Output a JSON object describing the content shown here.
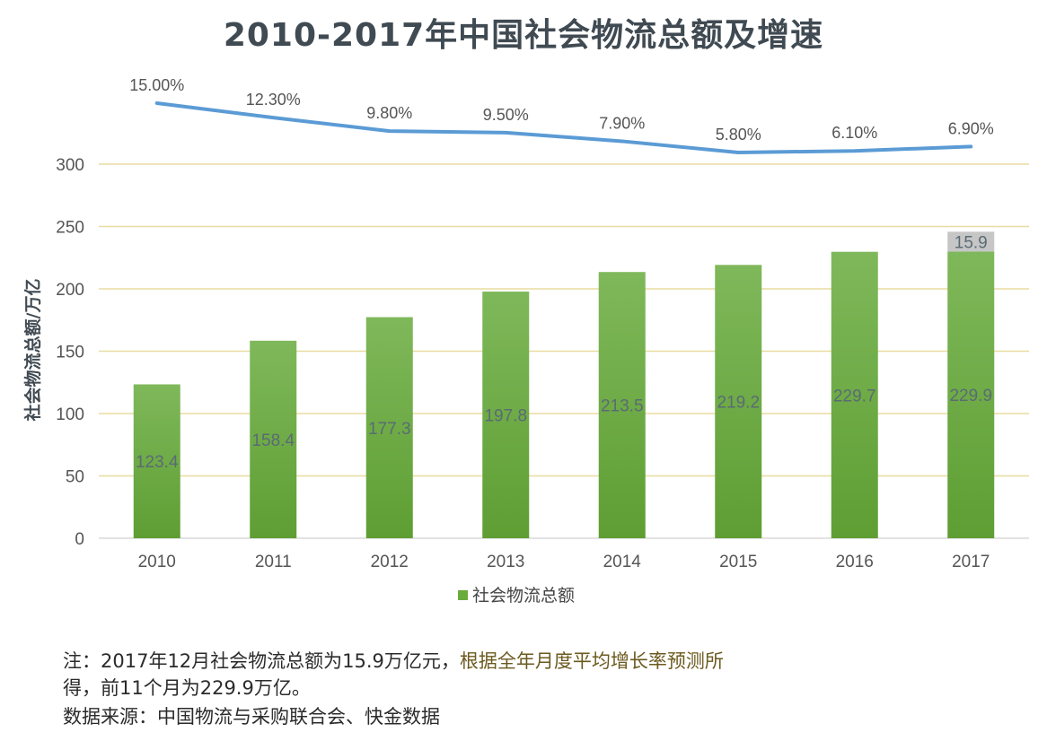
{
  "title": "2010-2017年中国社会物流总额及增速",
  "chart_data": {
    "type": "bar",
    "categories": [
      "2010",
      "2011",
      "2012",
      "2013",
      "2014",
      "2015",
      "2016",
      "2017"
    ],
    "series": [
      {
        "name": "社会物流总额",
        "values": [
          123.4,
          158.4,
          177.3,
          197.8,
          213.5,
          219.2,
          229.7,
          229.9
        ],
        "labels": [
          "123.4",
          "158.4",
          "177.3",
          "197.8",
          "213.5",
          "219.2",
          "229.7",
          "229.9"
        ],
        "color": "#6aab3e"
      },
      {
        "name": "",
        "stacked_on_last_category": true,
        "value": 15.9,
        "label": "15.9",
        "color": "#c6c6c6"
      }
    ],
    "growth_line": {
      "values": [
        15.0,
        12.3,
        9.8,
        9.5,
        7.9,
        5.8,
        6.1,
        6.9
      ],
      "labels": [
        "15.00%",
        "12.30%",
        "9.80%",
        "9.50%",
        "7.90%",
        "5.80%",
        "6.10%",
        "6.90%"
      ],
      "color": "#5b9bd5"
    },
    "ylabel": "社会物流总额/万亿",
    "yticks": [
      "0",
      "50",
      "100",
      "150",
      "200",
      "250",
      "300"
    ],
    "ylim": [
      0,
      300
    ],
    "legend": {
      "label": "社会物流总额",
      "position": "bottom"
    },
    "grid": true,
    "gridline_color": "#e8dca0"
  },
  "notes": {
    "line1_a": "注：2017年12月社会物流总额为15.9万亿元，",
    "line1_b": "根据全年月度平均增长率预测所",
    "line2": "得，前11个月为229.9万亿。",
    "line3": "数据来源：中国物流与采购联合会、快金数据"
  }
}
